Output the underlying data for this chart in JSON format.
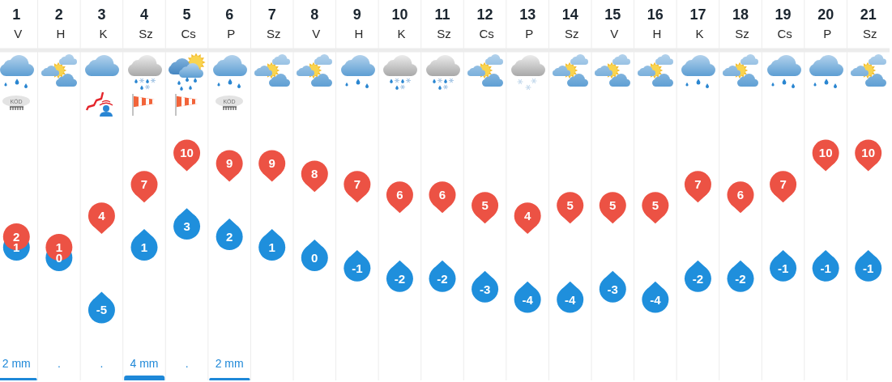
{
  "chart_data": [
    {
      "type": "scatter",
      "categories": [
        "1\nV",
        "2\nH",
        "3\nK",
        "4\nSz",
        "5\nCs",
        "6\nP",
        "7\nSz",
        "8\nV",
        "9\nH",
        "10\nK",
        "11\nSz",
        "12\nCs",
        "13\nP",
        "14\nSz",
        "15\nV",
        "16\nH",
        "17\nK",
        "18\nSz",
        "19\nCs",
        "20\nP",
        "21\nSz"
      ],
      "series": [
        {
          "color": "#ec5244",
          "values": [
            2,
            1,
            4,
            7,
            10,
            9,
            9,
            8,
            7,
            6,
            6,
            5,
            4,
            5,
            5,
            5,
            7,
            6,
            7,
            10,
            10
          ]
        },
        {
          "color": "#1f8fdc",
          "values": [
            1,
            0,
            -5,
            1,
            3,
            2,
            1,
            0,
            -1,
            -2,
            -2,
            -3,
            -4,
            -4,
            -3,
            -4,
            -2,
            -2,
            -1,
            -1,
            -1
          ]
        }
      ],
      "data_labels": true,
      "annotations": [
        "KÖD",
        "KÖD"
      ],
      "grid": "x",
      "tick_labels": "x"
    },
    {
      "type": "bar",
      "categories": [
        null,
        null,
        null,
        null,
        null,
        null,
        null,
        null,
        null,
        null,
        null,
        null,
        null,
        null,
        null,
        null,
        null,
        null,
        null,
        null,
        null
      ],
      "values": [
        2,
        null,
        null,
        4,
        null,
        2,
        null,
        null,
        null,
        null,
        null,
        null,
        null,
        null,
        null,
        null,
        null,
        null,
        null,
        null,
        null
      ],
      "value_labels": [
        "2 mm",
        ".",
        ".",
        "4 mm",
        ".",
        "2 mm",
        null,
        null,
        null,
        null,
        null,
        null,
        null,
        null,
        null,
        null,
        null,
        null,
        null,
        null,
        null
      ],
      "color": "#1e88d8",
      "grid": "x",
      "tick_labels": false
    }
  ]
}
